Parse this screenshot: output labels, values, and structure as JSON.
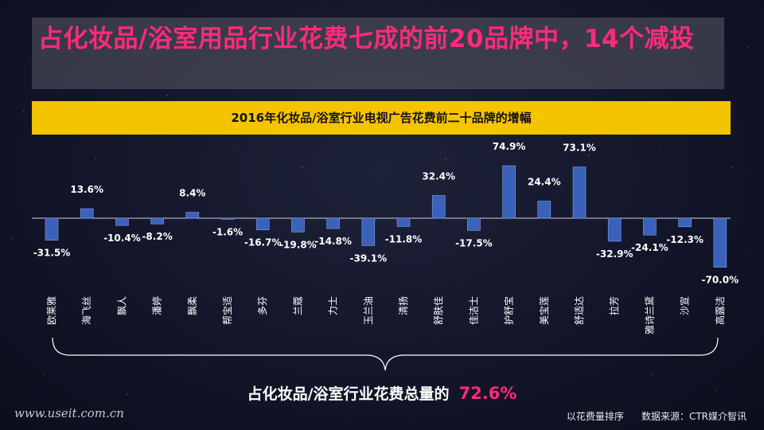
{
  "title": "占化妆品/浴室用品行业花费七成的前20品牌中，14个减投",
  "chart_data": {
    "type": "bar",
    "title": "2016年化妆品/浴室行业电视广告花费前二十品牌的增幅",
    "categories": [
      "欧莱雅",
      "海飞丝",
      "飘人",
      "潘婷",
      "飘柔",
      "帮宝适",
      "多芬",
      "兰蔻",
      "力士",
      "玉兰油",
      "清扬",
      "舒肤佳",
      "佳洁士",
      "护舒宝",
      "美宝莲",
      "舒适达",
      "拉芳",
      "雅诗兰黛",
      "沙宣",
      "高露洁"
    ],
    "values": [
      -31.5,
      13.6,
      -10.4,
      -8.2,
      8.4,
      -1.6,
      -16.7,
      -19.8,
      -14.8,
      -39.1,
      -11.8,
      32.4,
      -17.5,
      74.9,
      24.4,
      73.1,
      -32.9,
      -24.1,
      -12.3,
      -70.0
    ],
    "value_suffix": "%",
    "bar_color": "#3a62b8",
    "grid": false,
    "legend": "none"
  },
  "summary": {
    "label": "占化妆品/浴室行业花费总量的",
    "value": "72.6%",
    "value_color": "#ff2a79"
  },
  "watermark": "www.useit.com.cn",
  "footnote": {
    "sort": "以花费量排序",
    "source": "数据来源：CTR媒介智讯"
  }
}
